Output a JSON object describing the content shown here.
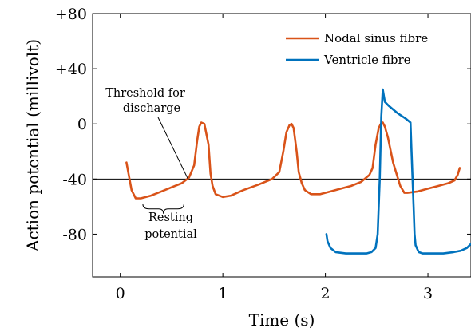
{
  "chart_data": {
    "type": "line",
    "xlabel": "Time (s)",
    "ylabel": "Action potential (millivolt)",
    "xlim": [
      -0.27,
      3.42
    ],
    "ylim": [
      -111,
      80
    ],
    "xticks": [
      0,
      1,
      2,
      3
    ],
    "yticks": [
      80,
      40,
      0,
      -40,
      -80
    ],
    "ytick_labels": [
      "+80",
      "+40",
      "0",
      "-40",
      "-80"
    ],
    "grid": false,
    "legend_position": "top-right",
    "threshold_line": {
      "y": -40,
      "color": "#000000"
    },
    "series": [
      {
        "name": "Nodal sinus fibre",
        "color": "#d95319",
        "x": [
          0.06,
          0.11,
          0.15,
          0.2,
          0.3,
          0.4,
          0.5,
          0.6,
          0.67,
          0.72,
          0.75,
          0.77,
          0.79,
          0.82,
          0.86,
          0.88,
          0.9,
          0.93,
          1.0,
          1.08,
          1.2,
          1.35,
          1.48,
          1.55,
          1.59,
          1.62,
          1.65,
          1.67,
          1.69,
          1.72,
          1.74,
          1.77,
          1.8,
          1.86,
          1.95,
          2.05,
          2.15,
          2.25,
          2.35,
          2.43,
          2.46,
          2.49,
          2.52,
          2.54,
          2.56,
          2.58,
          2.61,
          2.66,
          2.73,
          2.77,
          2.8,
          2.9,
          3.0,
          3.1,
          3.2,
          3.26,
          3.29,
          3.31
        ],
        "y": [
          -28,
          -48,
          -54,
          -54,
          -52,
          -49,
          -46,
          -43,
          -39,
          -30,
          -12,
          -2,
          1,
          0,
          -15,
          -36,
          -45,
          -51,
          -53,
          -52,
          -48,
          -44,
          -40,
          -35,
          -20,
          -6,
          -1,
          0,
          -3,
          -20,
          -35,
          -43,
          -48,
          -51,
          -51,
          -49,
          -47,
          -45,
          -42,
          -37,
          -32,
          -15,
          -3,
          0,
          1,
          -2,
          -10,
          -28,
          -45,
          -50,
          -50,
          -49,
          -47,
          -45,
          -43,
          -41,
          -37,
          -32
        ]
      },
      {
        "name": "Ventricle fibre",
        "color": "#0072bd",
        "x": [
          2.01,
          2.02,
          2.05,
          2.1,
          2.2,
          2.3,
          2.4,
          2.45,
          2.49,
          2.51,
          2.53,
          2.545,
          2.56,
          2.58,
          2.62,
          2.7,
          2.78,
          2.83,
          2.84,
          2.86,
          2.87,
          2.88,
          2.91,
          2.95,
          3.05,
          3.15,
          3.25,
          3.32,
          3.38,
          3.42
        ],
        "y": [
          -80,
          -85,
          -90,
          -93,
          -94,
          -94,
          -94,
          -93,
          -90,
          -80,
          -40,
          5,
          25,
          16,
          13,
          8,
          4,
          1,
          -20,
          -60,
          -80,
          -88,
          -93,
          -94,
          -94,
          -94,
          -93,
          -92,
          -90,
          -87
        ]
      }
    ],
    "annotations": [
      {
        "text_lines": [
          "Threshold for",
          "discharge"
        ],
        "points_to": {
          "x": 0.66,
          "y": -40
        }
      },
      {
        "text_lines": [
          "Resting",
          "potential"
        ],
        "brace_x_range": [
          0.22,
          0.62
        ],
        "brace_y": -57
      }
    ]
  }
}
